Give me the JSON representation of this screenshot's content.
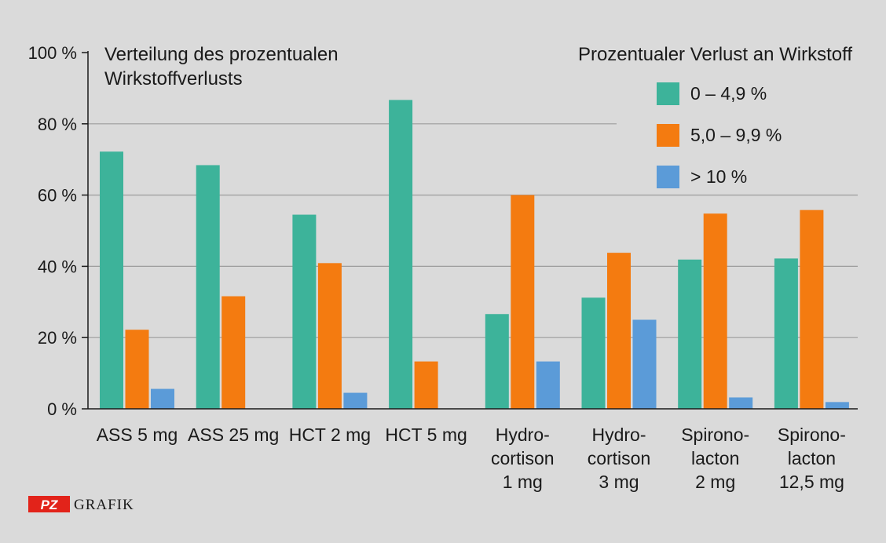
{
  "chart_data": {
    "type": "bar",
    "title_lines": [
      "Verteilung des prozentualen",
      "Wirkstoffverlusts"
    ],
    "legend_title": "Prozentualer Verlust an Wirkstoff",
    "legend_placement": "top-right",
    "grid": true,
    "ylim": [
      0,
      100
    ],
    "yticks": [
      0,
      20,
      40,
      60,
      80,
      100
    ],
    "ytick_labels": [
      "0 %",
      "20 %",
      "40 %",
      "60 %",
      "80 %",
      "100 %"
    ],
    "categories": [
      [
        "ASS 5 mg"
      ],
      [
        "ASS 25 mg"
      ],
      [
        "HCT 2 mg"
      ],
      [
        "HCT 5 mg"
      ],
      [
        "Hydro-",
        "cortison",
        "1 mg"
      ],
      [
        "Hydro-",
        "cortison",
        "3 mg"
      ],
      [
        "Spirono-",
        "lacton",
        "2 mg"
      ],
      [
        "Spirono-",
        "lacton",
        "12,5 mg"
      ]
    ],
    "series": [
      {
        "name": "0 – 4,9 %",
        "color": "#3db39a",
        "values": [
          72.2,
          68.4,
          54.5,
          86.7,
          26.6,
          31.2,
          41.9,
          42.2
        ]
      },
      {
        "name": "5,0 – 9,9 %",
        "color": "#f47b10",
        "values": [
          22.2,
          31.6,
          40.9,
          13.3,
          60.0,
          43.8,
          54.8,
          55.8
        ]
      },
      {
        "name": "> 10 %",
        "color": "#5b9bd8",
        "values": [
          5.6,
          0,
          4.5,
          0,
          13.3,
          25.0,
          3.2,
          1.9
        ]
      }
    ]
  },
  "footer": {
    "logo_text": "PZ",
    "label": "GRAFIK",
    "logo_color": "#e2231a"
  }
}
